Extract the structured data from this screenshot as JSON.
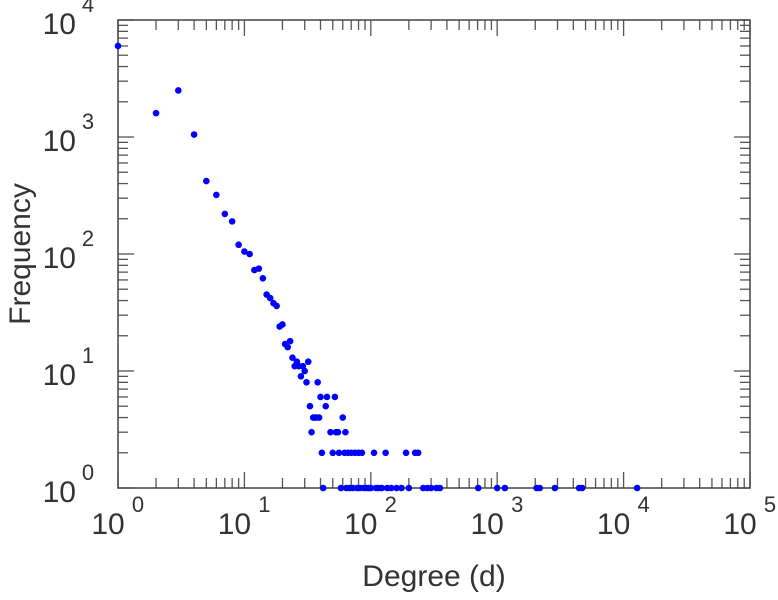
{
  "chart_data": {
    "type": "scatter",
    "title": "",
    "xlabel": "Degree (d)",
    "ylabel": "Frequency",
    "xscale": "log",
    "yscale": "log",
    "xlim": [
      1,
      100000
    ],
    "ylim": [
      1,
      10000
    ],
    "grid": false,
    "legend": "none",
    "x_ticks": [
      {
        "base": "10",
        "exp": "0"
      },
      {
        "base": "10",
        "exp": "1"
      },
      {
        "base": "10",
        "exp": "2"
      },
      {
        "base": "10",
        "exp": "3"
      },
      {
        "base": "10",
        "exp": "4"
      },
      {
        "base": "10",
        "exp": "5"
      }
    ],
    "y_ticks": [
      {
        "base": "10",
        "exp": "0"
      },
      {
        "base": "10",
        "exp": "1"
      },
      {
        "base": "10",
        "exp": "2"
      },
      {
        "base": "10",
        "exp": "3"
      },
      {
        "base": "10",
        "exp": "4"
      }
    ],
    "marker_color": "#0000ff",
    "points": [
      [
        1,
        6000
      ],
      [
        2,
        1600
      ],
      [
        3,
        2500
      ],
      [
        4,
        1050
      ],
      [
        5,
        420
      ],
      [
        6,
        320
      ],
      [
        7,
        220
      ],
      [
        8,
        190
      ],
      [
        9,
        120
      ],
      [
        10,
        105
      ],
      [
        11,
        100
      ],
      [
        12,
        73
      ],
      [
        13,
        75
      ],
      [
        14,
        62
      ],
      [
        15,
        45
      ],
      [
        16,
        42
      ],
      [
        17,
        38
      ],
      [
        18,
        36
      ],
      [
        19,
        24
      ],
      [
        20,
        25
      ],
      [
        21,
        17
      ],
      [
        22,
        16
      ],
      [
        23,
        18
      ],
      [
        24,
        13
      ],
      [
        25,
        11
      ],
      [
        26,
        12
      ],
      [
        27,
        11
      ],
      [
        28,
        9
      ],
      [
        29,
        11
      ],
      [
        30,
        10
      ],
      [
        31,
        8
      ],
      [
        32,
        12
      ],
      [
        33,
        5
      ],
      [
        34,
        3
      ],
      [
        35,
        4
      ],
      [
        36,
        4
      ],
      [
        37,
        4
      ],
      [
        38,
        8
      ],
      [
        39,
        4
      ],
      [
        40,
        6
      ],
      [
        41,
        2
      ],
      [
        42,
        1
      ],
      [
        44,
        5
      ],
      [
        45,
        6
      ],
      [
        48,
        3
      ],
      [
        50,
        2
      ],
      [
        52,
        6
      ],
      [
        53,
        3
      ],
      [
        55,
        3
      ],
      [
        56,
        2
      ],
      [
        58,
        1
      ],
      [
        60,
        4
      ],
      [
        62,
        2
      ],
      [
        63,
        3
      ],
      [
        64,
        1
      ],
      [
        66,
        2
      ],
      [
        68,
        1
      ],
      [
        70,
        2
      ],
      [
        72,
        1
      ],
      [
        75,
        2
      ],
      [
        78,
        1
      ],
      [
        80,
        2
      ],
      [
        82,
        1
      ],
      [
        85,
        2
      ],
      [
        88,
        1
      ],
      [
        92,
        1
      ],
      [
        96,
        1
      ],
      [
        100,
        1
      ],
      [
        106,
        2
      ],
      [
        110,
        1
      ],
      [
        115,
        1
      ],
      [
        122,
        1
      ],
      [
        131,
        2
      ],
      [
        135,
        1
      ],
      [
        145,
        1
      ],
      [
        160,
        1
      ],
      [
        175,
        1
      ],
      [
        190,
        2
      ],
      [
        200,
        1
      ],
      [
        224,
        2
      ],
      [
        237,
        2
      ],
      [
        260,
        1
      ],
      [
        280,
        1
      ],
      [
        300,
        1
      ],
      [
        330,
        1
      ],
      [
        352,
        1
      ],
      [
        708,
        1
      ],
      [
        1000,
        1
      ],
      [
        1150,
        1
      ],
      [
        2050,
        1
      ],
      [
        2170,
        1
      ],
      [
        2860,
        1
      ],
      [
        4450,
        1
      ],
      [
        4700,
        1
      ],
      [
        12800,
        1
      ]
    ]
  }
}
